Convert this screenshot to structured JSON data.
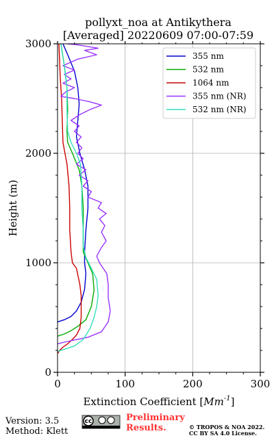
{
  "chart_data": {
    "type": "line",
    "title": "pollyxt_noa at Antikythera",
    "subtitle": "[Averaged] 20220609 07:00-07:59",
    "xlabel": "Extinction Coefficient [Mm^-1]",
    "xlabel_prefix": "Extinction Coefficient [",
    "xlabel_unit": "Mm",
    "xlabel_exp": "-1",
    "xlabel_suffix": "]",
    "ylabel": "Height (m)",
    "xlim": [
      0,
      300
    ],
    "ylim": [
      0,
      3000
    ],
    "xticks": [
      0,
      100,
      200,
      300
    ],
    "yticks": [
      0,
      1000,
      2000,
      3000
    ],
    "grid": true,
    "legend_position": "top-right",
    "series": [
      {
        "name": "355 nm",
        "color": "#0000cc",
        "points": [
          [
            0,
            460
          ],
          [
            10,
            480
          ],
          [
            20,
            510
          ],
          [
            28,
            560
          ],
          [
            35,
            640
          ],
          [
            40,
            760
          ],
          [
            42,
            900
          ],
          [
            40,
            1000
          ],
          [
            40,
            1100
          ],
          [
            42,
            1300
          ],
          [
            45,
            1500
          ],
          [
            45,
            1700
          ],
          [
            40,
            1850
          ],
          [
            33,
            2000
          ],
          [
            28,
            2150
          ],
          [
            30,
            2300
          ],
          [
            32,
            2450
          ],
          [
            30,
            2600
          ],
          [
            25,
            2750
          ],
          [
            15,
            2900
          ],
          [
            8,
            3000
          ]
        ]
      },
      {
        "name": "532 nm",
        "color": "#00aa00",
        "points": [
          [
            0,
            330
          ],
          [
            10,
            350
          ],
          [
            20,
            380
          ],
          [
            30,
            420
          ],
          [
            42,
            480
          ],
          [
            50,
            600
          ],
          [
            54,
            750
          ],
          [
            52,
            900
          ],
          [
            45,
            1000
          ],
          [
            38,
            1100
          ],
          [
            38,
            1300
          ],
          [
            38,
            1500
          ],
          [
            36,
            1700
          ],
          [
            32,
            1850
          ],
          [
            22,
            2000
          ],
          [
            15,
            2100
          ],
          [
            14,
            2200
          ],
          [
            15,
            2400
          ],
          [
            14,
            2600
          ],
          [
            10,
            2800
          ],
          [
            5,
            3000
          ]
        ]
      },
      {
        "name": "1064 nm",
        "color": "#cc0000",
        "points": [
          [
            0,
            170
          ],
          [
            3,
            200
          ],
          [
            8,
            230
          ],
          [
            15,
            260
          ],
          [
            22,
            300
          ],
          [
            28,
            340
          ],
          [
            33,
            400
          ],
          [
            35,
            500
          ],
          [
            35,
            700
          ],
          [
            33,
            800
          ],
          [
            28,
            950
          ],
          [
            22,
            1000
          ],
          [
            20,
            1100
          ],
          [
            18,
            1300
          ],
          [
            18,
            1500
          ],
          [
            17,
            1700
          ],
          [
            14,
            1900
          ],
          [
            8,
            2100
          ],
          [
            7,
            2300
          ],
          [
            6,
            2500
          ],
          [
            4,
            2700
          ],
          [
            2,
            3000
          ]
        ]
      },
      {
        "name": "355 nm (NR)",
        "color": "#9933ff",
        "points": [
          [
            0,
            260
          ],
          [
            10,
            275
          ],
          [
            25,
            295
          ],
          [
            45,
            320
          ],
          [
            65,
            370
          ],
          [
            75,
            460
          ],
          [
            78,
            560
          ],
          [
            75,
            680
          ],
          [
            75,
            800
          ],
          [
            73,
            900
          ],
          [
            62,
            1000
          ],
          [
            58,
            1060
          ],
          [
            65,
            1140
          ],
          [
            72,
            1200
          ],
          [
            65,
            1280
          ],
          [
            70,
            1340
          ],
          [
            62,
            1400
          ],
          [
            72,
            1450
          ],
          [
            60,
            1500
          ],
          [
            65,
            1550
          ],
          [
            45,
            1600
          ],
          [
            50,
            1650
          ],
          [
            38,
            1700
          ],
          [
            45,
            1750
          ],
          [
            32,
            1800
          ],
          [
            42,
            1850
          ],
          [
            28,
            1900
          ],
          [
            38,
            1950
          ],
          [
            30,
            2000
          ],
          [
            36,
            2050
          ],
          [
            28,
            2100
          ],
          [
            35,
            2150
          ],
          [
            25,
            2200
          ],
          [
            32,
            2250
          ],
          [
            20,
            2300
          ],
          [
            32,
            2350
          ],
          [
            48,
            2400
          ],
          [
            65,
            2440
          ],
          [
            48,
            2470
          ],
          [
            25,
            2500
          ],
          [
            5,
            2520
          ],
          [
            12,
            2560
          ],
          [
            25,
            2600
          ],
          [
            8,
            2640
          ],
          [
            20,
            2680
          ],
          [
            10,
            2720
          ],
          [
            25,
            2760
          ],
          [
            8,
            2800
          ],
          [
            30,
            2860
          ],
          [
            58,
            2900
          ],
          [
            40,
            2940
          ],
          [
            60,
            2960
          ],
          [
            30,
            2990
          ],
          [
            15,
            3000
          ]
        ]
      },
      {
        "name": "532 nm (NR)",
        "color": "#33ddbb",
        "points": [
          [
            0,
            190
          ],
          [
            10,
            210
          ],
          [
            25,
            240
          ],
          [
            38,
            300
          ],
          [
            48,
            400
          ],
          [
            54,
            500
          ],
          [
            58,
            600
          ],
          [
            60,
            700
          ],
          [
            58,
            850
          ],
          [
            50,
            950
          ],
          [
            42,
            1050
          ],
          [
            38,
            1150
          ],
          [
            38,
            1300
          ],
          [
            36,
            1500
          ],
          [
            36,
            1700
          ],
          [
            34,
            1900
          ],
          [
            28,
            2000
          ],
          [
            20,
            2100
          ],
          [
            15,
            2200
          ],
          [
            14,
            2400
          ],
          [
            14,
            2600
          ],
          [
            10,
            2800
          ],
          [
            5,
            3000
          ]
        ]
      }
    ]
  },
  "footer": {
    "version": "Version: 3.5",
    "method": "Method: Klett",
    "preliminary_line1": "Preliminary",
    "preliminary_line2": "Results.",
    "copyright_line1": "© TROPOS & NOA 2022.",
    "copyright_line2": "CC BY SA 4.0 License.",
    "cc_badge": "cc"
  }
}
